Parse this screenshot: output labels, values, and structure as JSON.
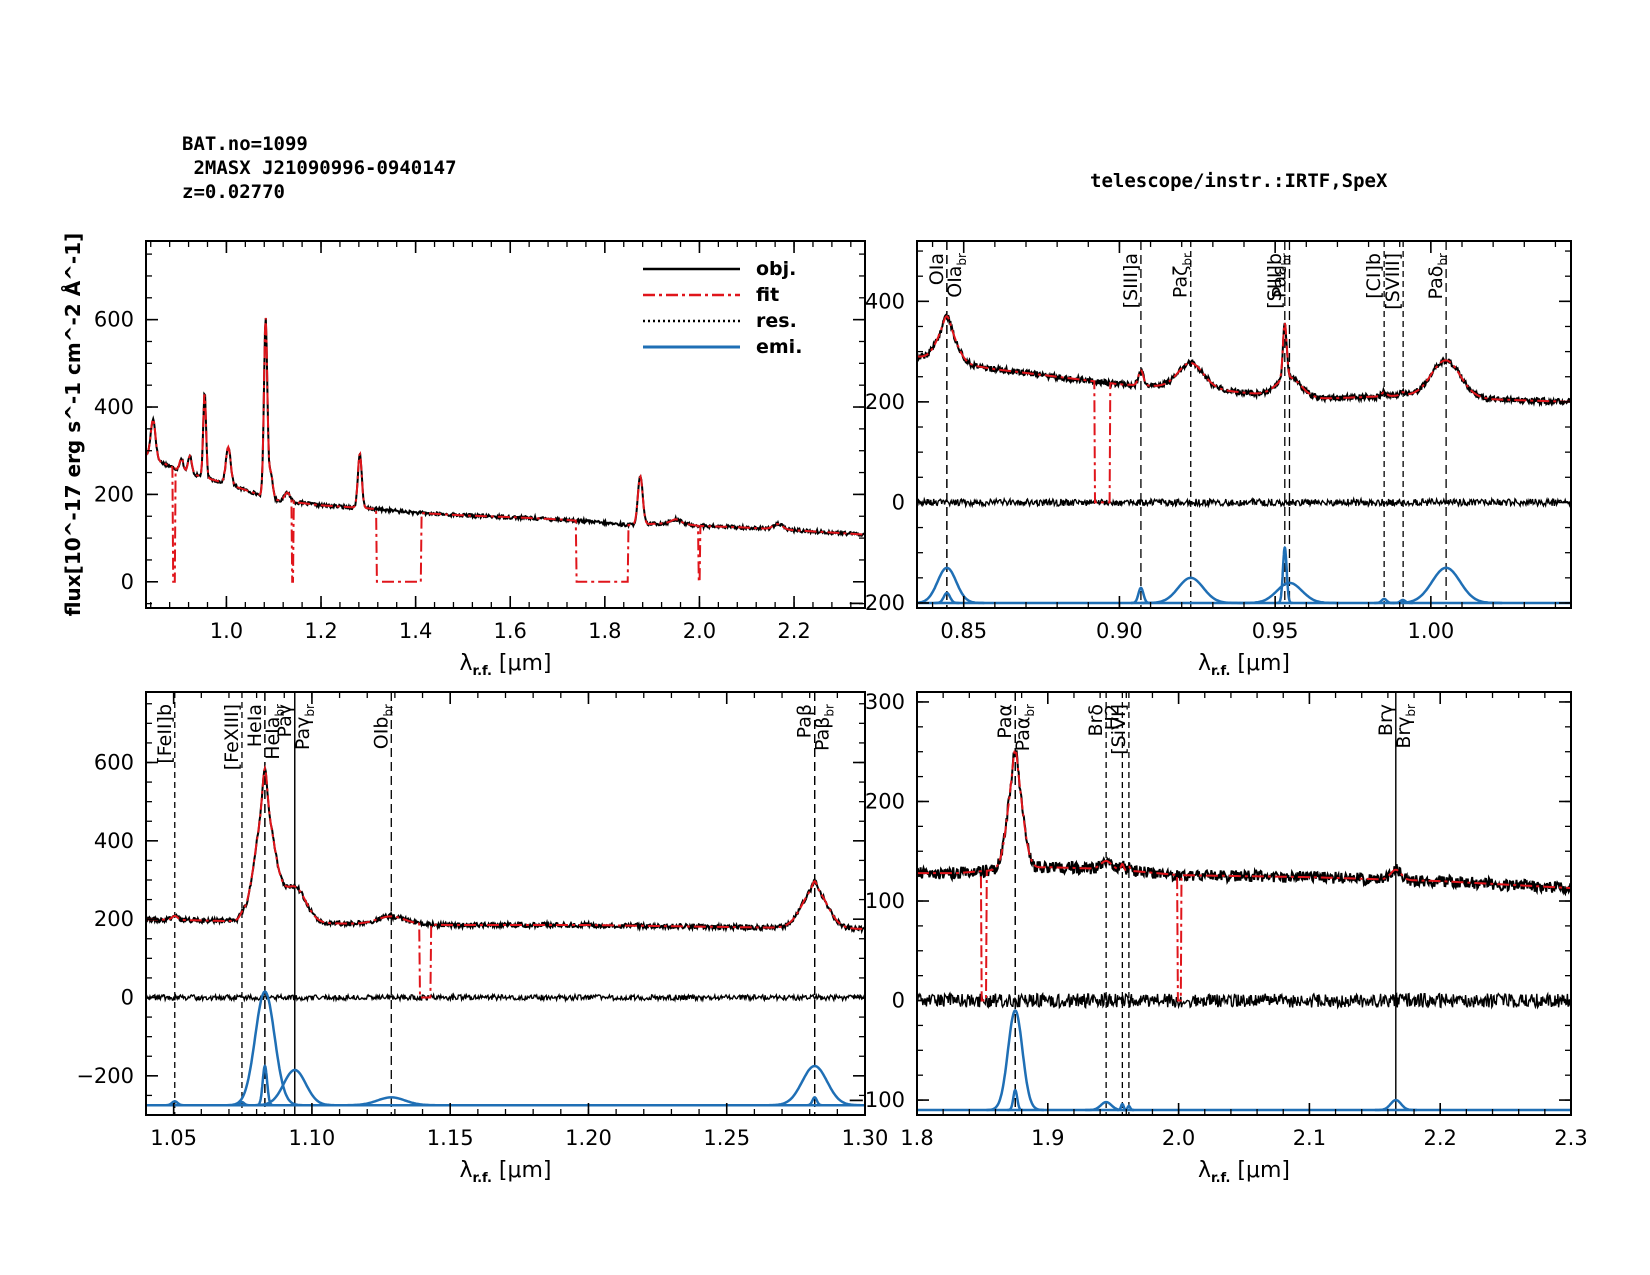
{
  "header": {
    "bat_no": "BAT.no=1099",
    "object_name": " 2MASX J21090996-0940147",
    "redshift": "z=0.02770",
    "telescope": "telescope/instr.:IRTF,SpeX"
  },
  "legend": {
    "obj": "obj.",
    "fit": "fit",
    "res": "res.",
    "emi": "emi."
  },
  "colors": {
    "obj": "#000000",
    "fit": "#e0151b",
    "res": "#000000",
    "emi": "#1f6fb5"
  },
  "chart_data": [
    {
      "id": "full",
      "type": "line",
      "title": "",
      "xlabel": "λ r.f. [μm]",
      "ylabel": "flux[10^-17 erg s^-1 cm^-2 Å^-1]",
      "xlim": [
        0.83,
        2.35
      ],
      "ylim": [
        -60,
        780
      ],
      "xticks": [
        1.0,
        1.2,
        1.4,
        1.6,
        1.8,
        2.0,
        2.2
      ],
      "xticklabels": [
        "1.0",
        "1.2",
        "1.4",
        "1.6",
        "1.8",
        "2.0",
        "2.2"
      ],
      "yticks": [
        0,
        200,
        400,
        600
      ],
      "yticklabels": [
        "0",
        "200",
        "400",
        "600"
      ],
      "baseline": [
        [
          0.83,
          290
        ],
        [
          0.9,
          255
        ],
        [
          1.0,
          225
        ],
        [
          1.1,
          188
        ],
        [
          1.2,
          175
        ],
        [
          1.3,
          168
        ],
        [
          1.4,
          158
        ],
        [
          1.5,
          152
        ],
        [
          1.6,
          148
        ],
        [
          1.7,
          143
        ],
        [
          1.74,
          140
        ],
        [
          1.85,
          130
        ],
        [
          1.95,
          135
        ],
        [
          2.0,
          128
        ],
        [
          2.1,
          124
        ],
        [
          2.2,
          118
        ],
        [
          2.35,
          108
        ]
      ],
      "peaks": [
        [
          0.845,
          90,
          0.005
        ],
        [
          0.905,
          30,
          0.004
        ],
        [
          0.923,
          40,
          0.004
        ],
        [
          0.954,
          195,
          0.003
        ],
        [
          1.004,
          85,
          0.005
        ],
        [
          1.083,
          410,
          0.0035
        ],
        [
          1.094,
          60,
          0.004
        ],
        [
          1.129,
          20,
          0.006
        ],
        [
          1.282,
          125,
          0.004
        ],
        [
          1.875,
          110,
          0.005
        ],
        [
          1.95,
          8,
          0.01
        ],
        [
          2.166,
          12,
          0.01
        ]
      ],
      "fit_gaps": [
        [
          0.887,
          0.892
        ],
        [
          1.138,
          1.142
        ],
        [
          1.318,
          1.412
        ],
        [
          1.74,
          1.85
        ],
        [
          1.998,
          2.002
        ]
      ],
      "legend": [
        "obj.",
        "fit",
        "res.",
        "emi."
      ],
      "legend_position": "top-right"
    },
    {
      "id": "zoom1",
      "type": "line",
      "xlabel": "λ r.f. [μm]",
      "xlim": [
        0.835,
        1.045
      ],
      "ylim": [
        -210,
        520
      ],
      "xticks": [
        0.85,
        0.9,
        0.95,
        1.0
      ],
      "xticklabels": [
        "0.85",
        "0.90",
        "0.95",
        "1.00"
      ],
      "yticks": [
        -200,
        0,
        200,
        400
      ],
      "yticklabels": [
        "−200",
        "0",
        "200",
        "400"
      ],
      "baseline": [
        [
          0.835,
          290
        ],
        [
          0.86,
          265
        ],
        [
          0.88,
          250
        ],
        [
          0.9,
          235
        ],
        [
          0.93,
          225
        ],
        [
          0.96,
          205
        ],
        [
          0.98,
          210
        ],
        [
          1.0,
          215
        ],
        [
          1.02,
          205
        ],
        [
          1.045,
          200
        ]
      ],
      "peaks": [
        [
          0.8446,
          70,
          0.003
        ],
        [
          0.8446,
          20,
          0.001
        ],
        [
          0.9069,
          30,
          0.0008
        ],
        [
          0.9229,
          50,
          0.004
        ],
        [
          0.9531,
          110,
          0.0006
        ],
        [
          0.9546,
          40,
          0.004
        ],
        [
          0.985,
          8,
          0.0008
        ],
        [
          0.991,
          6,
          0.0008
        ],
        [
          1.0049,
          70,
          0.0045
        ]
      ],
      "emi_offset": -200,
      "fit_gaps": [
        [
          0.892,
          0.897
        ]
      ],
      "residual_offset": 0,
      "lines": [
        {
          "x": 0.8446,
          "label": "OIa",
          "style": "long"
        },
        {
          "x": 0.8446,
          "label": "OIa br",
          "style": "long"
        },
        {
          "x": 0.9069,
          "label": "[SIII]a",
          "style": "long"
        },
        {
          "x": 0.9229,
          "label": "Paζ br",
          "style": "short"
        },
        {
          "x": 0.9531,
          "label": "[SIII]b",
          "style": "long"
        },
        {
          "x": 0.9546,
          "label": "Paε br",
          "style": "long"
        },
        {
          "x": 0.985,
          "label": "[CI]b",
          "style": "short"
        },
        {
          "x": 0.9911,
          "label": "[SVIII]",
          "style": "short"
        },
        {
          "x": 1.0049,
          "label": "Paδ br",
          "style": "long"
        }
      ]
    },
    {
      "id": "zoom2",
      "type": "line",
      "xlabel": "λ r.f. [μm]",
      "xlim": [
        1.04,
        1.3
      ],
      "ylim": [
        -300,
        780
      ],
      "xticks": [
        1.05,
        1.1,
        1.15,
        1.2,
        1.25,
        1.3
      ],
      "xticklabels": [
        "1.05",
        "1.10",
        "1.15",
        "1.20",
        "1.25",
        "1.30"
      ],
      "yticks": [
        -200,
        0,
        200,
        400,
        600
      ],
      "yticklabels": [
        "−200",
        "0",
        "200",
        "400",
        "600"
      ],
      "baseline": [
        [
          1.04,
          200
        ],
        [
          1.07,
          195
        ],
        [
          1.1,
          190
        ],
        [
          1.15,
          185
        ],
        [
          1.2,
          185
        ],
        [
          1.25,
          180
        ],
        [
          1.3,
          175
        ]
      ],
      "peaks": [
        [
          1.0504,
          10,
          0.001
        ],
        [
          1.0747,
          8,
          0.0008
        ],
        [
          1.083,
          290,
          0.0035
        ],
        [
          1.083,
          100,
          0.0008
        ],
        [
          1.0938,
          90,
          0.004
        ],
        [
          1.1287,
          20,
          0.005
        ],
        [
          1.2818,
          100,
          0.0045
        ],
        [
          1.2818,
          20,
          0.0008
        ]
      ],
      "emi_offset": -275,
      "fit_gaps": [
        [
          1.139,
          1.143
        ]
      ],
      "residual_offset": 0,
      "lines": [
        {
          "x": 1.0504,
          "label": "[FeII]b",
          "style": "short"
        },
        {
          "x": 1.0747,
          "label": "[FeXIII]",
          "style": "short"
        },
        {
          "x": 1.083,
          "label": "HeIa",
          "style": "long"
        },
        {
          "x": 1.083,
          "label": "HeIa br",
          "style": "long"
        },
        {
          "x": 1.0938,
          "label": "Paγ",
          "style": "solid"
        },
        {
          "x": 1.0938,
          "label": "Paγ br",
          "style": "solid"
        },
        {
          "x": 1.1287,
          "label": "OIb br",
          "style": "long"
        },
        {
          "x": 1.2818,
          "label": "Paβ",
          "style": "long"
        },
        {
          "x": 1.2818,
          "label": "Paβ br",
          "style": "long"
        }
      ]
    },
    {
      "id": "zoom3",
      "type": "line",
      "xlabel": "λ r.f. [μm]",
      "xlim": [
        1.8,
        2.3
      ],
      "ylim": [
        -115,
        310
      ],
      "xticks": [
        1.8,
        1.9,
        2.0,
        2.1,
        2.2,
        2.3
      ],
      "xticklabels": [
        "1.8",
        "1.9",
        "2.0",
        "2.1",
        "2.2",
        "2.3"
      ],
      "yticks": [
        -100,
        0,
        100,
        200,
        300
      ],
      "yticklabels": [
        "−100",
        "0",
        "100",
        "200",
        "300"
      ],
      "baseline": [
        [
          1.83,
          128
        ],
        [
          1.87,
          132
        ],
        [
          1.9,
          134
        ],
        [
          1.95,
          132
        ],
        [
          2.0,
          126
        ],
        [
          2.1,
          124
        ],
        [
          2.2,
          120
        ],
        [
          2.3,
          113
        ]
      ],
      "peaks": [
        [
          1.8751,
          100,
          0.0055
        ],
        [
          1.8751,
          20,
          0.0015
        ],
        [
          1.9446,
          8,
          0.004
        ],
        [
          1.957,
          6,
          0.001
        ],
        [
          1.962,
          4,
          0.001
        ],
        [
          2.1661,
          10,
          0.004
        ]
      ],
      "emi_offset": -110,
      "fit_gaps": [
        [
          1.849,
          1.853
        ],
        [
          1.999,
          2.002
        ]
      ],
      "residual_offset": 0,
      "lines": [
        {
          "x": 1.8751,
          "label": "Paα",
          "style": "long"
        },
        {
          "x": 1.8751,
          "label": "Paα br",
          "style": "long"
        },
        {
          "x": 1.9446,
          "label": "Brδ",
          "style": "short"
        },
        {
          "x": 1.957,
          "label": "H2",
          "style": "short"
        },
        {
          "x": 1.962,
          "label": "[SiVI]",
          "style": "short"
        },
        {
          "x": 2.1661,
          "label": "Brγ",
          "style": "solid"
        },
        {
          "x": 2.1661,
          "label": "Brγ br",
          "style": "solid"
        }
      ]
    }
  ]
}
